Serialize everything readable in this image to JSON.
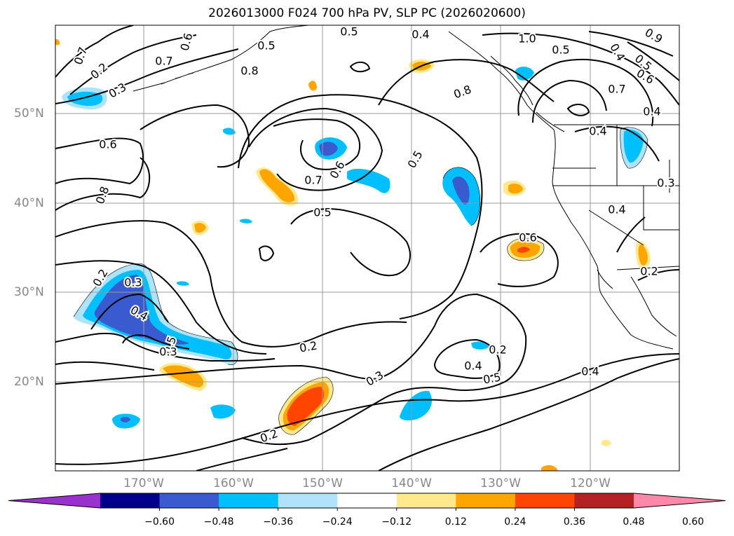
{
  "title": "2026013000 F024 700 hPa PV, SLP PC (2026020600)",
  "map": {
    "projection": "cylindrical",
    "lon_range": [
      -180,
      -110
    ],
    "lat_range": [
      10,
      60
    ],
    "latitude_labels": [
      "50°N",
      "40°N",
      "30°N",
      "20°N"
    ],
    "longitude_labels": [
      "170°W",
      "160°W",
      "150°W",
      "140°W",
      "130°W",
      "120°W"
    ],
    "gridlines": true,
    "gridline_color": "#9a9a9a",
    "label_color": "#888888",
    "contour_color": "#000000",
    "coastline_color": "#000000",
    "contour_labels": [
      "0.5",
      "1.0",
      "0.6",
      "0.5",
      "0.8",
      "0.7",
      "0.9",
      "0.7",
      "0.2",
      "0.3",
      "0.4",
      "0.5",
      "0.6",
      "0.7",
      "0.8",
      "0.4",
      "0.6",
      "0.5",
      "0.7",
      "0.6",
      "0.8",
      "0.5",
      "0.6",
      "0.2",
      "0.3",
      "0.4",
      "0.5",
      "0.2",
      "0.3",
      "0.4",
      "0.5",
      "0.4",
      "0.2",
      "0.3",
      "0.2",
      "0.3",
      "0.4",
      "0.5",
      "0.4",
      "0.2",
      "0.4"
    ]
  },
  "colorbar": {
    "ticks": [
      "−0.60",
      "−0.48",
      "−0.36",
      "−0.24",
      "−0.12",
      "0.12",
      "0.24",
      "0.36",
      "0.48",
      "0.60"
    ],
    "colors": [
      "#9932cc",
      "#00008b",
      "#3a5bcf",
      "#00bfff",
      "#aee3fb",
      "#ffffff",
      "#ffe98c",
      "#ffa500",
      "#ff4500",
      "#b22222",
      "#ff88a8"
    ],
    "extend": "both"
  }
}
